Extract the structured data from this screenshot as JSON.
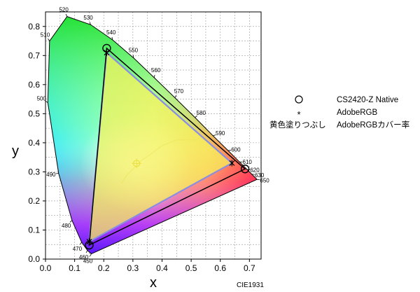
{
  "chart_data": {
    "type": "scatter",
    "title": "",
    "xlabel": "x",
    "ylabel": "y",
    "caption": "CIE1931",
    "xlim": [
      0,
      0.74
    ],
    "ylim": [
      0,
      0.85
    ],
    "x_ticks": [
      "0.0",
      "0.1",
      "0.2",
      "0.3",
      "0.4",
      "0.5",
      "0.6",
      "0.7"
    ],
    "y_ticks": [
      "0.0",
      "0.1",
      "0.2",
      "0.3",
      "0.4",
      "0.5",
      "0.6",
      "0.7",
      "0.8"
    ],
    "grid": true,
    "legend_position": "right",
    "spectral_locus": [
      {
        "label": "450",
        "x": 0.157,
        "y": 0.018
      },
      {
        "label": "460",
        "x": 0.144,
        "y": 0.03
      },
      {
        "label": "470",
        "x": 0.124,
        "y": 0.058
      },
      {
        "label": "480",
        "x": 0.091,
        "y": 0.133
      },
      {
        "label": "490",
        "x": 0.045,
        "y": 0.295
      },
      {
        "label": "500",
        "x": 0.008,
        "y": 0.538
      },
      {
        "label": "510",
        "x": 0.014,
        "y": 0.75
      },
      {
        "label": "520",
        "x": 0.074,
        "y": 0.834
      },
      {
        "label": "530",
        "x": 0.155,
        "y": 0.806
      },
      {
        "label": "540",
        "x": 0.23,
        "y": 0.754
      },
      {
        "label": "550",
        "x": 0.302,
        "y": 0.692
      },
      {
        "label": "560",
        "x": 0.373,
        "y": 0.624
      },
      {
        "label": "570",
        "x": 0.444,
        "y": 0.555
      },
      {
        "label": "580",
        "x": 0.513,
        "y": 0.487
      },
      {
        "label": "590",
        "x": 0.575,
        "y": 0.424
      },
      {
        "label": "600",
        "x": 0.627,
        "y": 0.373
      },
      {
        "label": "610",
        "x": 0.666,
        "y": 0.334
      },
      {
        "label": "620",
        "x": 0.692,
        "y": 0.308
      },
      {
        "label": "630",
        "x": 0.708,
        "y": 0.292
      },
      {
        "label": "650",
        "x": 0.726,
        "y": 0.274
      }
    ],
    "series": [
      {
        "name": "CS2420-Z Native",
        "marker": "circle",
        "points": [
          {
            "x": 0.685,
            "y": 0.31
          },
          {
            "x": 0.21,
            "y": 0.725
          },
          {
            "x": 0.15,
            "y": 0.048
          }
        ]
      },
      {
        "name": "AdobeRGB",
        "marker": "star",
        "points": [
          {
            "x": 0.64,
            "y": 0.33
          },
          {
            "x": 0.21,
            "y": 0.71
          },
          {
            "x": 0.15,
            "y": 0.06
          }
        ]
      },
      {
        "name": "黄色塗りつぶし AdobeRGBカバー率",
        "marker": "filled-area",
        "color": "#f6f25a",
        "points": [
          {
            "x": 0.64,
            "y": 0.33
          },
          {
            "x": 0.21,
            "y": 0.71
          },
          {
            "x": 0.15,
            "y": 0.06
          }
        ]
      }
    ],
    "colors": {
      "native_outline": "#000000",
      "adobe_outline": "#8a8de0",
      "coverage_fill": "#f6f25a"
    }
  },
  "legend": {
    "items": [
      {
        "symbol": "○",
        "label": "CS2420-Z Native"
      },
      {
        "symbol": "*",
        "label": "AdobeRGB"
      },
      {
        "symbol": "黄色塗りつぶし",
        "label": "AdobeRGBカバー率"
      }
    ]
  }
}
